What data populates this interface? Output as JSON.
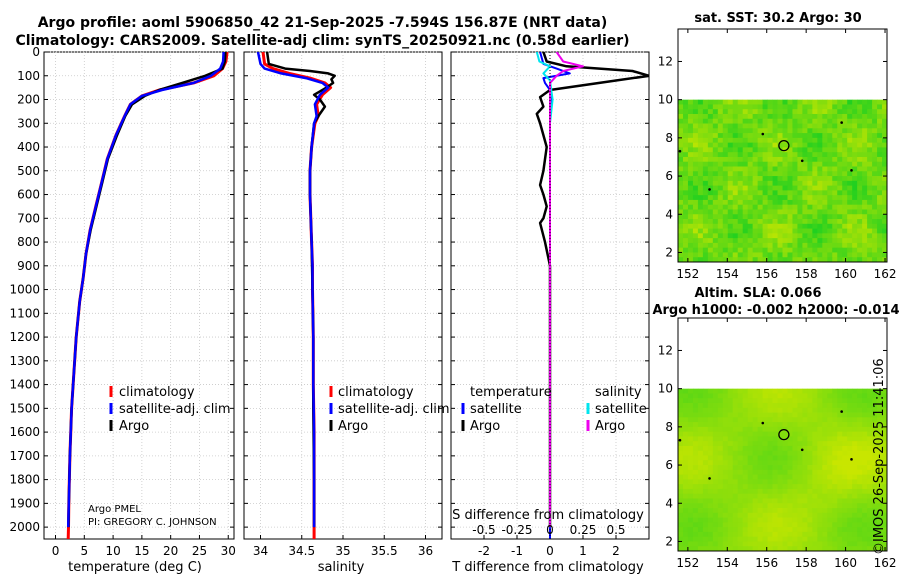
{
  "header": {
    "title_line1": "Argo profile: aoml 5906850_42 21-Sep-2025 -7.594S 156.87E (NRT data)",
    "title_line2": "Climatology: CARS2009. Satellite-adj clim: synTS_20250921.nc (0.58d earlier)"
  },
  "colors": {
    "climatology": "#ff0000",
    "satellite_adj": "#0000ff",
    "argo": "#000000",
    "salinity_satellite": "#00e5ee",
    "salinity_argo": "#ee00ee",
    "map_low": "#c8e600",
    "map_high": "#20d020",
    "land": "#ffffff"
  },
  "stamp": "©IMOS 26-Sep-2025 11:41:06",
  "chart_data": [
    {
      "id": "temperature",
      "type": "line",
      "xlabel": "temperature (deg C)",
      "ylabel": "",
      "xlim": [
        -2,
        31
      ],
      "ylim": [
        2050,
        0
      ],
      "xticks": [
        0,
        5,
        10,
        15,
        20,
        25,
        30
      ],
      "yticks": [
        0,
        100,
        200,
        300,
        400,
        500,
        600,
        700,
        800,
        900,
        1000,
        1100,
        1200,
        1300,
        1400,
        1500,
        1600,
        1700,
        1800,
        1900,
        2000
      ],
      "legend": [
        "climatology",
        "satellite-adj. clim",
        "Argo"
      ],
      "annotation_line1": "Argo PMEL",
      "annotation_line2": "PI: GREGORY C. JOHNSON",
      "series": [
        {
          "name": "climatology",
          "color": "#ff0000",
          "x": [
            29.8,
            29.6,
            29.0,
            27.5,
            24.0,
            18.0,
            15.0,
            13.0,
            12.0,
            10.5,
            9.0,
            8.0,
            7.0,
            6.0,
            5.3,
            4.8,
            4.2,
            3.6,
            3.2,
            2.8,
            2.5,
            2.3,
            2.25,
            2.2
          ],
          "y": [
            0,
            40,
            70,
            100,
            130,
            160,
            185,
            220,
            270,
            350,
            450,
            550,
            650,
            750,
            850,
            950,
            1050,
            1200,
            1350,
            1500,
            1700,
            1900,
            2000,
            2050
          ]
        },
        {
          "name": "satellite-adj. clim",
          "color": "#0000ff",
          "x": [
            29.2,
            29.1,
            28.6,
            27.0,
            24.0,
            18.5,
            15.0,
            13.0,
            12.0,
            10.5,
            9.0,
            8.0,
            7.0,
            6.0,
            5.3,
            4.8,
            4.2,
            3.6,
            3.2,
            2.8,
            2.5,
            2.3,
            2.2
          ],
          "y": [
            0,
            40,
            70,
            100,
            130,
            160,
            185,
            220,
            270,
            350,
            450,
            550,
            650,
            750,
            850,
            950,
            1050,
            1200,
            1350,
            1500,
            1700,
            1900,
            2000
          ]
        },
        {
          "name": "Argo",
          "color": "#000000",
          "x": [
            29.5,
            29.4,
            29.0,
            26.0,
            22.0,
            18.0,
            15.5,
            13.3,
            12.1,
            10.7,
            9.1,
            8.1,
            7.1,
            6.1,
            5.3,
            4.8,
            4.2,
            3.6,
            3.2,
            2.8,
            2.5,
            2.3,
            2.25
          ],
          "y": [
            0,
            40,
            70,
            100,
            130,
            160,
            185,
            220,
            270,
            350,
            450,
            550,
            650,
            750,
            850,
            950,
            1050,
            1200,
            1350,
            1500,
            1700,
            1900,
            2000
          ]
        }
      ]
    },
    {
      "id": "salinity",
      "type": "line",
      "xlabel": "salinity",
      "ylabel": "",
      "xlim": [
        33.8,
        36.2
      ],
      "ylim": [
        2050,
        0
      ],
      "xticks": [
        34,
        34.5,
        35,
        35.5,
        36
      ],
      "xtick_labels": [
        "34",
        "34.5",
        "35",
        "35.5",
        "36"
      ],
      "legend": [
        "climatology",
        "satellite-adj. clim",
        "Argo"
      ],
      "series": [
        {
          "name": "climatology",
          "color": "#ff0000",
          "x": [
            34.03,
            34.05,
            34.15,
            34.35,
            34.6,
            34.78,
            34.85,
            34.75,
            34.68,
            34.7,
            34.66,
            34.62,
            34.6,
            34.6,
            34.61,
            34.62,
            34.63,
            34.63,
            34.64,
            34.64,
            34.65,
            34.65,
            34.65,
            34.65
          ],
          "y": [
            0,
            50,
            70,
            90,
            110,
            130,
            150,
            180,
            220,
            270,
            300,
            400,
            500,
            600,
            700,
            800,
            900,
            1000,
            1200,
            1400,
            1600,
            1800,
            2000,
            2050
          ]
        },
        {
          "name": "satellite-adj. clim",
          "color": "#0000ff",
          "x": [
            33.97,
            34.0,
            34.05,
            34.25,
            34.55,
            34.75,
            34.82,
            34.72,
            34.66,
            34.68,
            34.65,
            34.62,
            34.6,
            34.6,
            34.61,
            34.62,
            34.63,
            34.63,
            34.64,
            34.64,
            34.65,
            34.65,
            34.65
          ],
          "y": [
            0,
            50,
            70,
            90,
            110,
            130,
            150,
            180,
            220,
            270,
            300,
            400,
            500,
            600,
            700,
            800,
            900,
            1000,
            1200,
            1400,
            1600,
            1800,
            2000
          ]
        },
        {
          "name": "Argo",
          "color": "#000000",
          "x": [
            34.08,
            34.1,
            34.3,
            34.6,
            34.82,
            34.9,
            34.86,
            34.88,
            34.8,
            34.65,
            34.72,
            34.78,
            34.7,
            34.65,
            34.62,
            34.6,
            34.6,
            34.61,
            34.62,
            34.63,
            34.64,
            34.64,
            34.65,
            34.65
          ],
          "y": [
            0,
            50,
            70,
            80,
            90,
            100,
            115,
            130,
            150,
            180,
            200,
            230,
            270,
            300,
            400,
            500,
            600,
            700,
            800,
            1000,
            1200,
            1500,
            1800,
            2000
          ]
        }
      ]
    },
    {
      "id": "difference",
      "type": "line",
      "xlabel": "T difference from climatology",
      "xlabel2": "S difference from climatology",
      "xlim": [
        -3,
        3
      ],
      "x2lim": [
        -0.75,
        0.75
      ],
      "ylim": [
        2050,
        0
      ],
      "xticks": [
        -2,
        -1,
        0,
        1,
        2
      ],
      "xtick_labels": [
        "-2",
        "-1",
        "0",
        "1",
        "2"
      ],
      "x2ticks": [
        -0.5,
        -0.25,
        0,
        0.25,
        0.5
      ],
      "x2tick_labels": [
        "-0.5",
        "-0.25",
        "0",
        "0.25",
        "0.5"
      ],
      "legend_temperature_title": "temperature",
      "legend_salinity_title": "salinity",
      "legend_temperature": [
        "satellite",
        "Argo"
      ],
      "legend_salinity": [
        "satellite",
        "Argo"
      ],
      "series": [
        {
          "name": "temperature satellite",
          "color": "#0000ff",
          "x": [
            -0.3,
            -0.2,
            0.2,
            0.6,
            -0.2,
            -0.15,
            0.0,
            0.05,
            0.0,
            0.0,
            0.0,
            0.0,
            0.0,
            0.0,
            0.0,
            0.0,
            0.0,
            0.0
          ],
          "y": [
            0,
            50,
            70,
            90,
            110,
            130,
            160,
            200,
            250,
            300,
            400,
            600,
            800,
            1000,
            1400,
            1700,
            2000,
            2050
          ]
        },
        {
          "name": "temperature Argo",
          "color": "#000000",
          "x": [
            -0.2,
            -0.1,
            0.5,
            2.5,
            3.0,
            1.5,
            0.0,
            -0.3,
            -0.2,
            -0.4,
            -0.3,
            -0.1,
            -0.2,
            -0.3,
            -0.2,
            -0.1,
            -0.2,
            -0.3,
            -0.15,
            0.0,
            0.0,
            0.0,
            0.0,
            0.0,
            0.0
          ],
          "y": [
            0,
            40,
            60,
            80,
            100,
            130,
            160,
            190,
            230,
            260,
            300,
            400,
            500,
            560,
            600,
            650,
            700,
            720,
            800,
            900,
            1000,
            1200,
            1500,
            1800,
            2000
          ]
        },
        {
          "name": "salinity satellite",
          "color": "#00e5ee",
          "x": [
            -0.1,
            -0.08,
            0.0,
            -0.05,
            0.0,
            0.02,
            0.0,
            0.0,
            0.0,
            0.0,
            0.0,
            0.0,
            0.0
          ],
          "y": [
            0,
            40,
            60,
            90,
            120,
            200,
            300,
            400,
            500,
            700,
            1000,
            1500,
            2000
          ]
        },
        {
          "name": "salinity Argo",
          "color": "#ee00ee",
          "x": [
            0.05,
            0.1,
            0.25,
            0.1,
            0.05,
            0.0,
            0.0,
            0.0,
            0.0,
            0.0,
            0.0,
            0.0
          ],
          "y": [
            0,
            40,
            60,
            80,
            100,
            130,
            200,
            300,
            500,
            800,
            1200,
            2000
          ]
        }
      ]
    },
    {
      "id": "map_sst",
      "type": "heatmap",
      "title": "sat. SST: 30.2 Argo: 30",
      "xlim": [
        151.5,
        162.1
      ],
      "ylim": [
        1.5,
        13.7
      ],
      "data_top": 10,
      "xticks": [
        152,
        154,
        156,
        158,
        160,
        162
      ],
      "yticks": [
        2,
        4,
        6,
        8,
        10,
        12
      ],
      "marker": {
        "lon": 156.87,
        "lat": 7.594
      }
    },
    {
      "id": "map_sla",
      "type": "heatmap",
      "title_line1": "Altim. SLA: 0.066",
      "title_line2": "Argo h1000: -0.002 h2000: -0.014",
      "xlim": [
        151.5,
        162.1
      ],
      "ylim": [
        1.5,
        13.7
      ],
      "data_top": 10,
      "xticks": [
        152,
        154,
        156,
        158,
        160,
        162
      ],
      "yticks": [
        2,
        4,
        6,
        8,
        10,
        12
      ],
      "marker": {
        "lon": 156.87,
        "lat": 7.594
      }
    }
  ]
}
